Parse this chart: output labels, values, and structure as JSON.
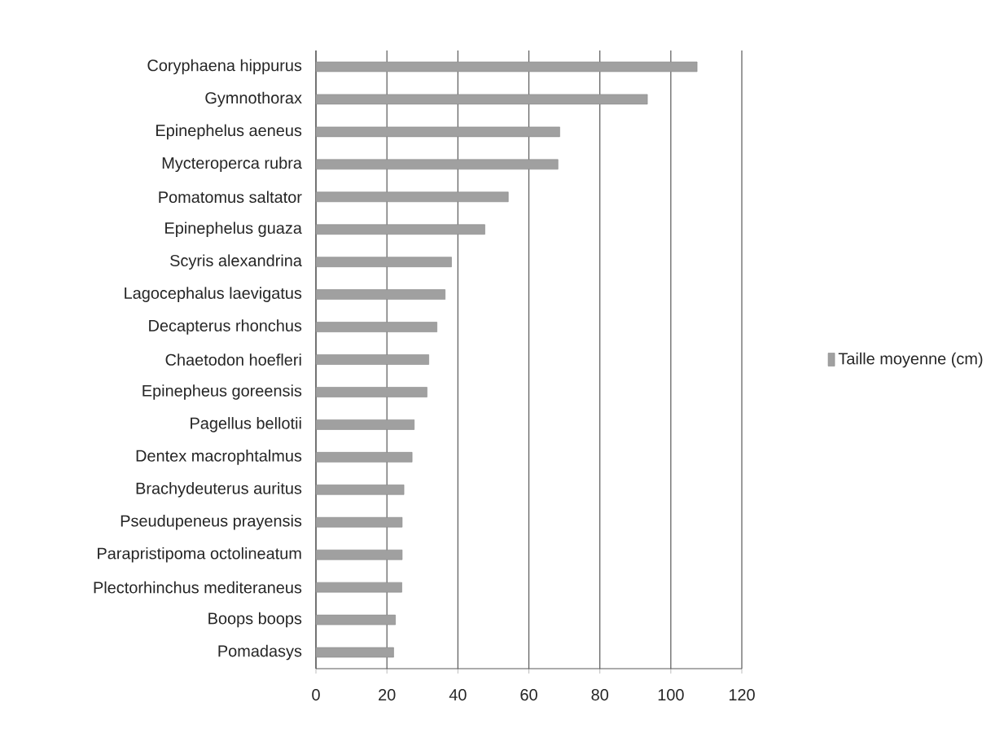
{
  "chart_data": {
    "type": "bar",
    "orientation": "horizontal",
    "categories": [
      "Coryphaena hippurus",
      "Gymnothorax",
      "Epinephelus aeneus",
      "Mycteroperca rubra",
      "Pomatomus saltator",
      "Epinephelus guaza",
      "Scyris alexandrina",
      "Lagocephalus laevigatus",
      "Decapterus rhonchus",
      "Chaetodon hoefleri",
      "Epinepheus goreensis",
      "Pagellus bellotii",
      "Dentex macrophtalmus",
      "Brachydeuterus auritus",
      "Pseudupeneus prayensis",
      "Parapristipoma octolineatum",
      "Plectorhinchus mediteraneus",
      "Boops boops",
      "Pomadasys"
    ],
    "series": [
      {
        "name": "Taille moyenne (cm)",
        "color": "#a0a0a0",
        "values": [
          107.4,
          93.4,
          68.7,
          68.2,
          54.2,
          47.6,
          38.2,
          36.4,
          34.1,
          31.8,
          31.3,
          27.7,
          27.1,
          24.8,
          24.3,
          24.3,
          24.2,
          22.4,
          21.9
        ]
      }
    ],
    "xlim": [
      0,
      120
    ],
    "xticks": [
      0,
      20,
      40,
      60,
      80,
      100,
      120
    ],
    "grid": "x",
    "legend": "right"
  }
}
